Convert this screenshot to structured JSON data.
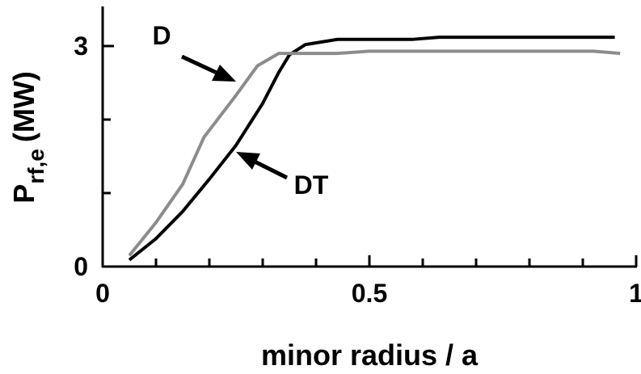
{
  "chart_data": {
    "type": "line",
    "x_label": "minor radius / a",
    "y_label": {
      "main": "P",
      "sub": "rf,e",
      "unit": "(MW)"
    },
    "xlim": [
      0,
      1
    ],
    "ylim": [
      0,
      3.5
    ],
    "xticks": [
      0,
      0.5,
      1
    ],
    "minor_xticks": [
      0.1,
      0.2,
      0.3,
      0.4,
      0.6,
      0.7,
      0.8,
      0.9
    ],
    "yticks": [
      0,
      3
    ],
    "minor_yticks": [
      1,
      2
    ],
    "series": [
      {
        "name": "DT",
        "color": "#000000",
        "x": [
          0.05,
          0.1,
          0.15,
          0.2,
          0.25,
          0.3,
          0.33,
          0.35,
          0.38,
          0.44,
          0.58,
          0.63,
          0.96
        ],
        "values": [
          0.09,
          0.38,
          0.75,
          1.19,
          1.65,
          2.22,
          2.64,
          2.88,
          3.02,
          3.09,
          3.09,
          3.12,
          3.12
        ]
      },
      {
        "name": "D",
        "color": "#8c8c8c",
        "x": [
          0.05,
          0.1,
          0.15,
          0.19,
          0.25,
          0.29,
          0.33,
          0.44,
          0.5,
          0.92,
          0.97
        ],
        "values": [
          0.15,
          0.6,
          1.12,
          1.76,
          2.33,
          2.73,
          2.9,
          2.9,
          2.93,
          2.93,
          2.9
        ]
      }
    ]
  }
}
